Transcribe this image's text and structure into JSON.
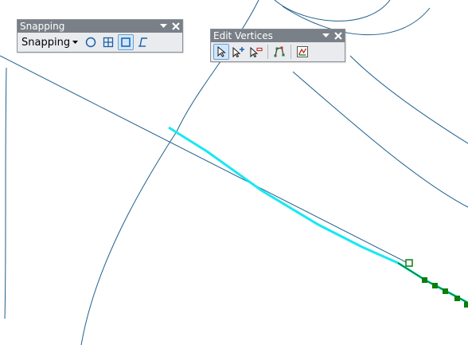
{
  "snapping_toolbar": {
    "title": "Snapping",
    "menu_label": "Snapping",
    "tools": [
      {
        "name": "point-snap",
        "icon": "circle-icon",
        "active": false
      },
      {
        "name": "end-snap",
        "icon": "grid-icon",
        "active": false
      },
      {
        "name": "vertex-snap",
        "icon": "square-icon",
        "active": true
      },
      {
        "name": "edge-snap",
        "icon": "edge-icon",
        "active": false
      }
    ]
  },
  "edit_vertices_toolbar": {
    "title": "Edit Vertices",
    "tools": [
      {
        "name": "modify-sketch-vertices",
        "icon": "arrow-icon",
        "active": true
      },
      {
        "name": "add-vertex",
        "icon": "add-vertex-icon",
        "active": false
      },
      {
        "name": "delete-vertex",
        "icon": "delete-vertex-icon",
        "active": false
      },
      {
        "name": "continue-feature",
        "icon": "continue-icon",
        "active": false
      },
      {
        "name": "sketch-properties",
        "icon": "sketch-properties-icon",
        "active": false
      }
    ]
  },
  "map": {
    "line_color": "#1f5f8b",
    "selected_color": "#19e8f0",
    "vertex_color": "#0b7d0b",
    "background": "#ffffff"
  }
}
